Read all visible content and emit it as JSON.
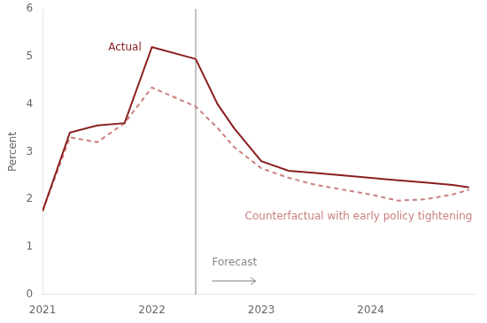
{
  "chart_data": {
    "type": "line",
    "y_label": "Percent",
    "series": [
      {
        "x": [
          2021.0,
          2021.25,
          2021.5,
          2021.75,
          2022.0,
          2022.4
        ],
        "values": [
          1.75,
          3.4,
          3.55,
          3.6,
          5.2,
          4.95
        ],
        "color": "#8B2020",
        "line_style": "solid"
      },
      {
        "x": [
          2022.4,
          2022.6,
          2022.75,
          2023.0,
          2023.25,
          2023.5,
          2023.75,
          2024.0,
          2024.25,
          2024.5,
          2024.75,
          2024.9
        ],
        "values": [
          4.95,
          4.0,
          3.5,
          2.8,
          2.6,
          2.55,
          2.5,
          2.45,
          2.4,
          2.35,
          2.3,
          2.25
        ],
        "color": "#8B2020",
        "line_style": "solid"
      },
      {
        "x": [
          2021.0,
          2021.25,
          2021.5,
          2021.75,
          2022.0,
          2022.4,
          2022.6,
          2022.75,
          2023.0,
          2023.25,
          2023.5,
          2023.75,
          2024.0,
          2024.25,
          2024.5,
          2024.75,
          2024.9
        ],
        "values": [
          1.75,
          3.3,
          3.2,
          3.6,
          4.35,
          3.95,
          3.5,
          3.1,
          2.65,
          2.45,
          2.3,
          2.2,
          2.1,
          1.97,
          2.0,
          2.1,
          2.2
        ],
        "color": "#C98080",
        "line_style": "dashed"
      }
    ],
    "vlines": [
      {
        "x": 2022.4,
        "color": "#888888"
      }
    ],
    "annotations": [
      {
        "text": "Forecast",
        "x": 2022.55,
        "y": 0.55,
        "color": "#888888",
        "arrow": {
          "x_start": 2022.55,
          "x_end": 2022.95,
          "y": 0.28
        }
      },
      {
        "text": "Actual",
        "x": 2021.6,
        "y": 5.08,
        "color": "#8B2020"
      },
      {
        "text": "Counterfactual with early policy tightening",
        "x": 2022.85,
        "y": 1.75,
        "color": "#C98080"
      }
    ],
    "xlim": [
      2021.0,
      2024.95
    ],
    "xticks": [
      2021,
      2022,
      2023,
      2024
    ],
    "ylim": [
      0,
      6
    ],
    "yticks": [
      0,
      1,
      2,
      3,
      4,
      5,
      6
    ],
    "grid": false
  }
}
